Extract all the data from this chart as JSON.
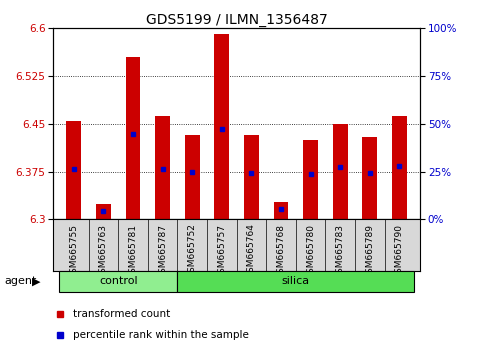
{
  "title": "GDS5199 / ILMN_1356487",
  "samples": [
    "GSM665755",
    "GSM665763",
    "GSM665781",
    "GSM665787",
    "GSM665752",
    "GSM665757",
    "GSM665764",
    "GSM665768",
    "GSM665780",
    "GSM665783",
    "GSM665789",
    "GSM665790"
  ],
  "groups": [
    "control",
    "control",
    "control",
    "control",
    "silica",
    "silica",
    "silica",
    "silica",
    "silica",
    "silica",
    "silica",
    "silica"
  ],
  "transformed_count": [
    6.455,
    6.325,
    6.555,
    6.463,
    6.432,
    6.591,
    6.432,
    6.328,
    6.425,
    6.45,
    6.43,
    6.463
  ],
  "percentile_rank": [
    26.5,
    4.5,
    44.5,
    26.5,
    25.0,
    47.5,
    24.5,
    5.5,
    24.0,
    27.5,
    24.5,
    28.0
  ],
  "ylim_left": [
    6.3,
    6.6
  ],
  "ylim_right": [
    0,
    100
  ],
  "yticks_left": [
    6.3,
    6.375,
    6.45,
    6.525,
    6.6
  ],
  "yticks_right": [
    0,
    25,
    50,
    75,
    100
  ],
  "bar_color": "#cc0000",
  "dot_color": "#0000cc",
  "control_color": "#90ee90",
  "silica_color": "#55dd55",
  "agent_label": "agent",
  "legend_bar_label": "transformed count",
  "legend_dot_label": "percentile rank within the sample",
  "title_fontsize": 10,
  "tick_fontsize": 7.5,
  "bar_width": 0.5
}
